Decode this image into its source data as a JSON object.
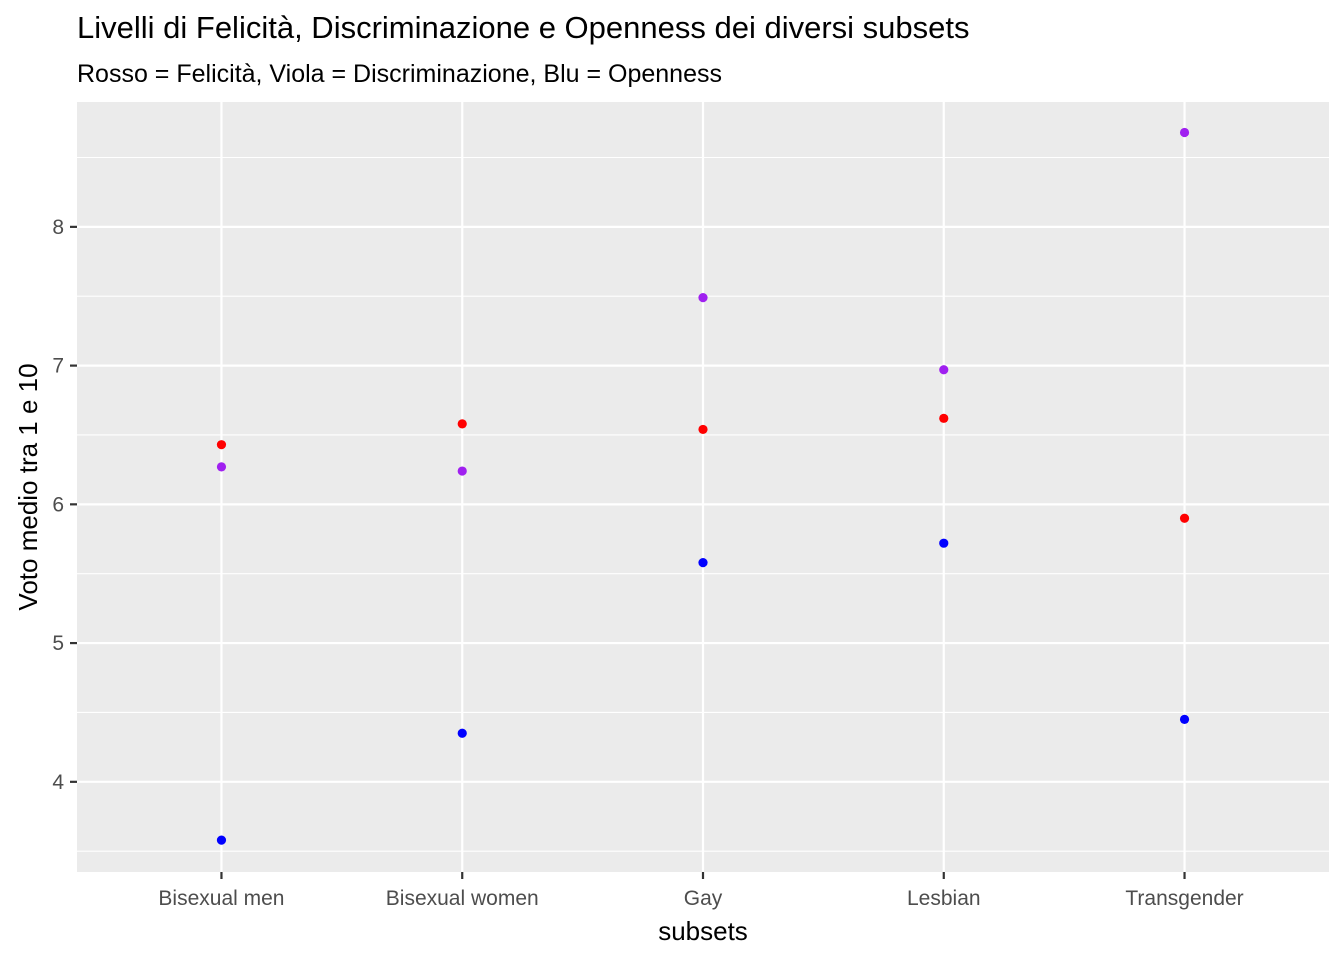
{
  "chart_data": {
    "type": "scatter",
    "title": "Livelli di Felicità, Discriminazione e Openness dei diversi subsets",
    "subtitle": "Rosso = Felicità, Viola = Discriminazione, Blu = Openness",
    "xlabel": "subsets",
    "ylabel": "Voto medio tra 1 e 10",
    "categories": [
      "Bisexual men",
      "Bisexual women",
      "Gay",
      "Lesbian",
      "Transgender"
    ],
    "yticks": [
      "4",
      "5",
      "6",
      "7",
      "8"
    ],
    "ylim": [
      3.35,
      8.9
    ],
    "grid": true,
    "series": [
      {
        "color": "#ff0000",
        "values": [
          6.43,
          6.58,
          6.54,
          6.62,
          5.9
        ]
      },
      {
        "color": "#a020f0",
        "values": [
          6.27,
          6.24,
          7.49,
          6.97,
          8.68
        ]
      },
      {
        "color": "#0000ff",
        "values": [
          3.58,
          4.35,
          5.58,
          5.72,
          4.45
        ]
      }
    ],
    "panel_background": "#ebebeb",
    "gridline_color": "#ffffff"
  }
}
